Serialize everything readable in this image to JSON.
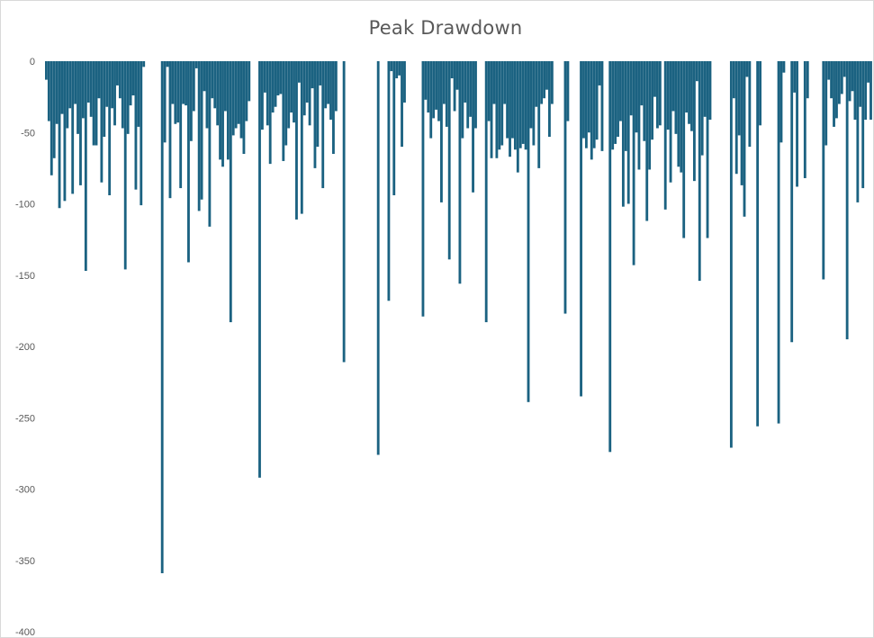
{
  "chart_data": {
    "type": "bar",
    "title": "Peak Drawdown",
    "xlabel": "",
    "ylabel": "",
    "ylim": [
      -400,
      0
    ],
    "y_ticks": [
      0,
      -50,
      -100,
      -150,
      -200,
      -250,
      -300,
      -350,
      -400
    ],
    "y_tick_labels": [
      "0",
      "-50",
      "-100",
      "-150",
      "-200",
      "-250",
      "-300",
      "-350",
      "-400"
    ],
    "grid": false,
    "legend": "none",
    "bar_color": "#1b6281",
    "series": [
      {
        "values": [
          -13,
          -42,
          -80,
          -68,
          -44,
          -103,
          -37,
          -98,
          -47,
          -33,
          -93,
          -30,
          -51,
          -87,
          -40,
          -147,
          -29,
          -39,
          -59,
          -59,
          -26,
          -85,
          -53,
          -32,
          -94,
          -33,
          -45,
          -17,
          -26,
          -47,
          -146,
          -51,
          -31,
          -24,
          -90,
          -46,
          -101,
          -4,
          0,
          0,
          0,
          0,
          0,
          0,
          -359,
          -57,
          -4,
          -96,
          -30,
          -44,
          -43,
          -89,
          -30,
          -31,
          -141,
          -56,
          -35,
          -5,
          -105,
          -97,
          -21,
          -47,
          -116,
          -26,
          -33,
          -45,
          -69,
          -74,
          -35,
          -69,
          -183,
          -52,
          -47,
          -44,
          -54,
          -65,
          -42,
          -28,
          0,
          0,
          0,
          -292,
          -48,
          -22,
          -45,
          -72,
          -36,
          -32,
          -24,
          -23,
          -70,
          -59,
          -47,
          -36,
          -43,
          -111,
          -15,
          -107,
          -38,
          -29,
          -45,
          -19,
          -75,
          -60,
          -17,
          -89,
          -33,
          -30,
          -41,
          -65,
          -35,
          0,
          0,
          -211,
          0,
          0,
          0,
          0,
          0,
          0,
          0,
          0,
          0,
          0,
          0,
          0,
          -276,
          0,
          0,
          0,
          -168,
          -7,
          -94,
          -12,
          -10,
          -60,
          -29,
          0,
          0,
          0,
          0,
          0,
          0,
          -179,
          -27,
          -36,
          -54,
          -40,
          -34,
          -42,
          -99,
          -30,
          -46,
          -139,
          -12,
          -35,
          -20,
          -156,
          -54,
          -29,
          -47,
          -39,
          -92,
          -47,
          0,
          0,
          0,
          -183,
          -42,
          -68,
          -30,
          -68,
          -62,
          -59,
          -30,
          -54,
          -67,
          -54,
          -62,
          -78,
          -61,
          -58,
          -62,
          -239,
          -47,
          -59,
          -32,
          -75,
          -30,
          -26,
          -20,
          -53,
          -30,
          0,
          0,
          0,
          0,
          -177,
          -42,
          0,
          0,
          0,
          0,
          -235,
          -54,
          -61,
          -50,
          -69,
          -61,
          -55,
          -17,
          -63,
          0,
          0,
          -274,
          -62,
          -58,
          -53,
          -42,
          -102,
          -63,
          -100,
          -38,
          -143,
          -50,
          -76,
          -31,
          -56,
          -112,
          -76,
          -55,
          -25,
          -47,
          -45,
          0,
          -104,
          -48,
          -85,
          -35,
          -51,
          -74,
          -78,
          -124,
          -36,
          -44,
          -49,
          -84,
          -14,
          -154,
          -66,
          -39,
          -124,
          -41,
          0,
          0,
          0,
          0,
          0,
          0,
          0,
          -271,
          -26,
          -79,
          -52,
          -87,
          -109,
          -11,
          -60,
          0,
          0,
          -256,
          -45,
          0,
          0,
          0,
          0,
          0,
          0,
          -254,
          -57,
          -8,
          0,
          0,
          -197,
          -22,
          -88,
          0,
          0,
          -82,
          -26,
          0,
          0,
          0,
          0,
          0,
          -153,
          -59,
          -13,
          -26,
          -46,
          -40,
          -30,
          -23,
          -11,
          -195,
          -28,
          -21,
          -41,
          -99,
          -32,
          -89,
          -41,
          -15,
          -41
        ]
      }
    ]
  }
}
